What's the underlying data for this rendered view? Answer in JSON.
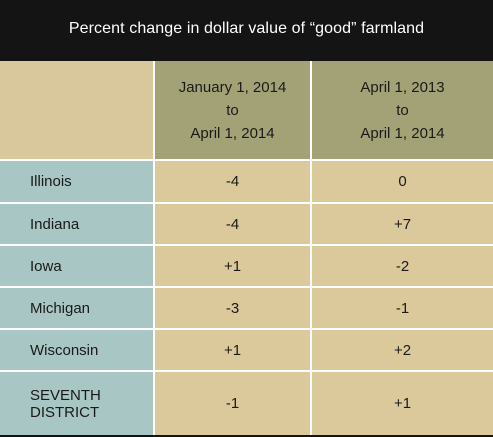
{
  "title": "Percent change in dollar value of “good” farmland",
  "chart_data": {
    "type": "table",
    "title": "Percent change in dollar value of “good” farmland",
    "columns": [
      "January 1, 2014\nto\nApril 1, 2014",
      "April 1, 2013\nto\nApril 1, 2014"
    ],
    "rows": [
      {
        "label": "Illinois",
        "values": [
          "-4",
          "0"
        ]
      },
      {
        "label": "Indiana",
        "values": [
          "-4",
          "+7"
        ]
      },
      {
        "label": "Iowa",
        "values": [
          "+1",
          "-2"
        ]
      },
      {
        "label": "Michigan",
        "values": [
          "-3",
          "-1"
        ]
      },
      {
        "label": "Wisconsin",
        "values": [
          "+1",
          "+2"
        ]
      },
      {
        "label": "SEVENTH\nDISTRICT",
        "values": [
          "-1",
          "+1"
        ]
      }
    ]
  },
  "colors": {
    "title_background": "#141414",
    "header_stub": "#d9c89c",
    "header_columns": "#a3a276",
    "row_labels": "#a7c6c4",
    "values": "#dcc99b"
  }
}
